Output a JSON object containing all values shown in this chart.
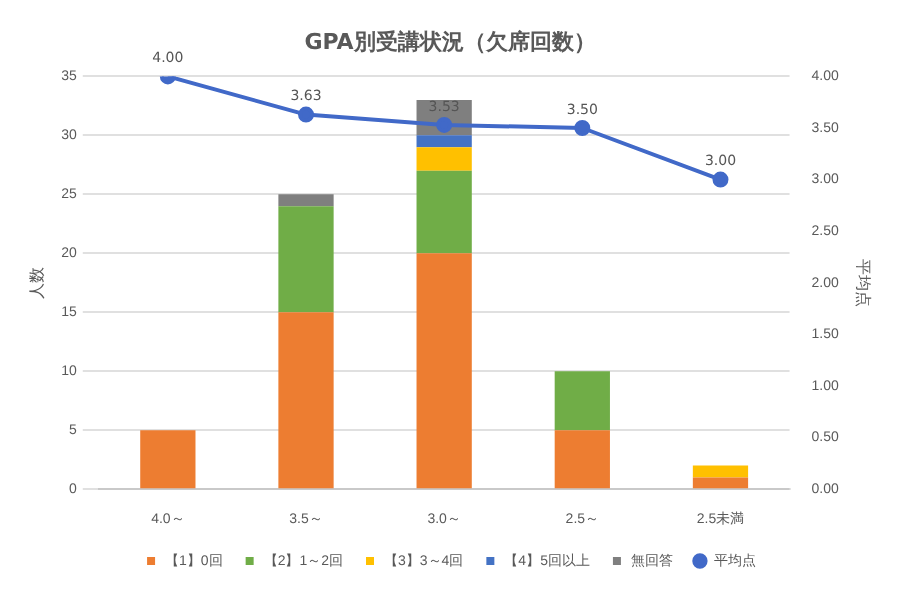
{
  "chart_data": {
    "type": "bar",
    "title": "GPA別受講状況（欠席回数）",
    "categories": [
      "4.0～",
      "3.5～",
      "3.0～",
      "2.5～",
      "2.5未満"
    ],
    "stacked": true,
    "ylabel": "人数",
    "y2label": "平均点",
    "ylim": [
      0,
      35
    ],
    "yticks": [
      0,
      5,
      10,
      15,
      20,
      25,
      30,
      35
    ],
    "y2lim": [
      0,
      4
    ],
    "y2ticks": [
      {
        "value": 0,
        "label": "0.00"
      },
      {
        "value": 0.5,
        "label": "0.50"
      },
      {
        "value": 1,
        "label": "1.00"
      },
      {
        "value": 1.5,
        "label": "1.50"
      },
      {
        "value": 2,
        "label": "2.00"
      },
      {
        "value": 2.5,
        "label": "2.50"
      },
      {
        "value": 3,
        "label": "3.00"
      },
      {
        "value": 3.5,
        "label": "3.50"
      },
      {
        "value": 4,
        "label": "4.00"
      }
    ],
    "grid": "y",
    "legend": "bottom",
    "series": [
      {
        "name": "【1】0回",
        "color": "#ed7d31",
        "values": [
          5,
          15,
          20,
          5,
          1
        ]
      },
      {
        "name": "【2】1～2回",
        "color": "#70ad47",
        "values": [
          0,
          9,
          7,
          5,
          0
        ]
      },
      {
        "name": "【3】3～4回",
        "color": "#ffc000",
        "values": [
          0,
          0,
          2,
          0,
          1
        ]
      },
      {
        "name": "【4】5回以上",
        "color": "#4472c4",
        "values": [
          0,
          0,
          1,
          0,
          0
        ]
      },
      {
        "name": "無回答",
        "color": "#7f7f7f",
        "values": [
          0,
          1,
          3,
          0,
          0
        ]
      },
      {
        "name": "平均点",
        "type": "line",
        "axis": "y2",
        "color": "#4169c8",
        "marker": "circle",
        "values": [
          4.0,
          3.63,
          3.53,
          3.5,
          3.0
        ],
        "value_labels": [
          "4.00",
          "3.63",
          "3.53",
          "3.50",
          "3.00"
        ]
      }
    ]
  }
}
